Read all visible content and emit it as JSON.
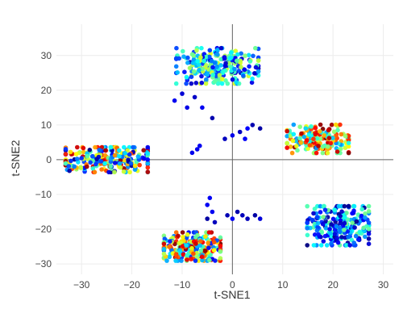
{
  "chart_data": {
    "type": "scatter",
    "title": "",
    "xlabel": "t-SNE1",
    "ylabel": "t-SNE2",
    "xlim": [
      -35,
      32
    ],
    "ylim": [
      -33,
      39
    ],
    "x_ticks": [
      -30,
      -20,
      -10,
      0,
      10,
      20,
      30
    ],
    "y_ticks": [
      -30,
      -20,
      -10,
      0,
      10,
      20,
      30
    ],
    "x_tick_labels": [
      "−30",
      "−20",
      "−10",
      "0",
      "10",
      "20",
      "30"
    ],
    "y_tick_labels": [
      "−30",
      "−20",
      "−10",
      "0",
      "10",
      "20",
      "30"
    ],
    "grid": true,
    "zero_lines": true,
    "colormap": "jet",
    "colormap_stops": [
      "#00007f",
      "#0000ff",
      "#007fff",
      "#00ffff",
      "#7fff7f",
      "#ffff00",
      "#ff7f00",
      "#ff0000",
      "#7f0000"
    ],
    "clusters": [
      {
        "center": [
          -3,
          27
        ],
        "spread": [
          8,
          5
        ],
        "count": 260
      },
      {
        "center": [
          -25,
          0
        ],
        "spread": [
          8,
          3.5
        ],
        "count": 240
      },
      {
        "center": [
          17,
          6
        ],
        "spread": [
          6,
          4
        ],
        "count": 170
      },
      {
        "center": [
          21,
          -19
        ],
        "spread": [
          6,
          5.5
        ],
        "count": 230
      },
      {
        "center": [
          -8,
          -25
        ],
        "spread": [
          5.5,
          4
        ],
        "count": 230
      }
    ],
    "bridge_points": [
      [
        -11.5,
        17
      ],
      [
        -10,
        19
      ],
      [
        -9,
        15
      ],
      [
        -7.5,
        18
      ],
      [
        -6,
        15
      ],
      [
        -4,
        12
      ],
      [
        -1.5,
        6
      ],
      [
        0,
        7
      ],
      [
        1.5,
        8
      ],
      [
        2.5,
        6
      ],
      [
        3,
        9
      ],
      [
        4,
        10
      ],
      [
        5.5,
        9
      ],
      [
        -5,
        -13
      ],
      [
        -4.5,
        -11
      ],
      [
        -4,
        -15
      ],
      [
        -5,
        -17
      ],
      [
        -3.5,
        -18
      ],
      [
        -1,
        -16
      ],
      [
        0,
        -17
      ],
      [
        1,
        -15
      ],
      [
        2,
        -16
      ],
      [
        3,
        -17
      ],
      [
        4.5,
        -16
      ],
      [
        5.5,
        -17
      ],
      [
        -7,
        3
      ],
      [
        -8,
        2
      ],
      [
        -6.5,
        4
      ]
    ]
  }
}
